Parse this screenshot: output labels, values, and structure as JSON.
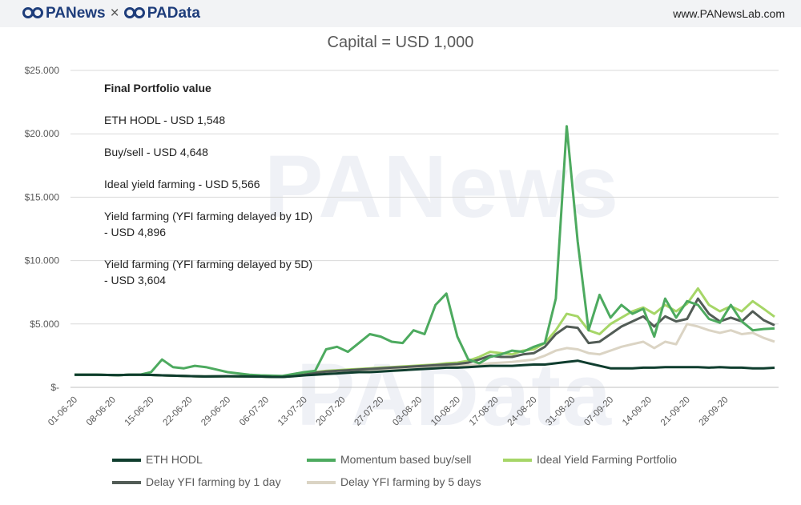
{
  "header": {
    "brand_left": "PANews",
    "brand_sep": "×",
    "brand_right": "PAData",
    "site": "www.PANewsLab.com"
  },
  "watermarks": [
    "PANews",
    "PAData"
  ],
  "annotations": {
    "heading": "Final Portfolio value",
    "lines": [
      "ETH HODL - USD 1,548",
      "Buy/sell - USD 4,648",
      "Ideal yield farming - USD 5,566",
      "Yield farming (YFI farming delayed by 1D)",
      "- USD 4,896",
      "Yield farming (YFI farming delayed by 5D)",
      "- USD 3,604"
    ]
  },
  "chart_data": {
    "type": "line",
    "title": "Capital = USD 1,000",
    "xlabel": "",
    "ylabel": "",
    "ylim": [
      0,
      25000
    ],
    "yticks": [
      0,
      5000,
      10000,
      15000,
      20000,
      25000
    ],
    "ytick_labels": [
      "$-",
      "$5.000",
      "$10.000",
      "$15.000",
      "$20.000",
      "$25.000"
    ],
    "x_start": "2020-06-01",
    "x_step_days": 2,
    "x_tick_labels": [
      "01-06-20",
      "08-06-20",
      "15-06-20",
      "22-06-20",
      "29-06-20",
      "06-07-20",
      "13-07-20",
      "20-07-20",
      "27-07-20",
      "03-08-20",
      "10-08-20",
      "17-08-20",
      "24-08-20",
      "31-08-20",
      "07-09-20",
      "14-09-20",
      "21-09-20",
      "28-09-20"
    ],
    "grid": true,
    "legend_position": "bottom",
    "series": [
      {
        "name": "ETH HODL",
        "color": "#0f3d2e",
        "values": [
          1000,
          1000,
          1000,
          980,
          960,
          990,
          1000,
          980,
          950,
          920,
          900,
          880,
          860,
          870,
          880,
          870,
          860,
          850,
          830,
          820,
          880,
          950,
          1000,
          1050,
          1100,
          1150,
          1200,
          1200,
          1250,
          1300,
          1350,
          1400,
          1450,
          1500,
          1550,
          1550,
          1600,
          1650,
          1700,
          1700,
          1700,
          1750,
          1800,
          1800,
          1900,
          2000,
          2100,
          1900,
          1700,
          1500,
          1500,
          1500,
          1550,
          1550,
          1600,
          1600,
          1600,
          1600,
          1550,
          1600,
          1550,
          1550,
          1500,
          1500,
          1548
        ]
      },
      {
        "name": "Momentum based buy/sell",
        "color": "#4daa5f",
        "values": [
          1000,
          1000,
          1000,
          980,
          960,
          990,
          1000,
          1200,
          2200,
          1600,
          1500,
          1700,
          1600,
          1400,
          1200,
          1100,
          1000,
          950,
          920,
          900,
          1050,
          1200,
          1300,
          3000,
          3200,
          2800,
          3500,
          4200,
          4000,
          3600,
          3500,
          4500,
          4200,
          6500,
          7400,
          4000,
          2200,
          1900,
          2400,
          2600,
          2900,
          2800,
          3200,
          3500,
          7000,
          20600,
          11500,
          4500,
          7300,
          5500,
          6500,
          5800,
          6200,
          4000,
          7000,
          5500,
          6800,
          6500,
          5400,
          5100,
          6500,
          5200,
          4500,
          4600,
          4648
        ]
      },
      {
        "name": "Ideal Yield Farming Portfolio",
        "color": "#a6d667",
        "values": [
          1000,
          1000,
          1000,
          980,
          960,
          990,
          1000,
          980,
          950,
          920,
          900,
          880,
          860,
          870,
          880,
          870,
          860,
          850,
          830,
          820,
          900,
          1050,
          1200,
          1300,
          1350,
          1400,
          1450,
          1500,
          1550,
          1600,
          1650,
          1700,
          1750,
          1800,
          1900,
          1950,
          2100,
          2400,
          2800,
          2700,
          2600,
          2900,
          3000,
          3500,
          4500,
          5800,
          5600,
          4500,
          4200,
          5000,
          5500,
          6000,
          6300,
          5800,
          6500,
          6000,
          6600,
          7800,
          6500,
          6000,
          6400,
          6000,
          6800,
          6200,
          5566
        ]
      },
      {
        "name": "Delay YFI farming by 1 day",
        "color": "#525c56",
        "values": [
          1000,
          1000,
          1000,
          980,
          960,
          990,
          1000,
          980,
          950,
          920,
          900,
          880,
          860,
          870,
          880,
          870,
          860,
          850,
          830,
          820,
          900,
          1000,
          1150,
          1250,
          1300,
          1350,
          1400,
          1450,
          1500,
          1550,
          1600,
          1650,
          1700,
          1750,
          1800,
          1850,
          1950,
          2200,
          2500,
          2400,
          2400,
          2600,
          2700,
          3200,
          4200,
          4800,
          4700,
          3500,
          3600,
          4200,
          4800,
          5200,
          5600,
          4800,
          5600,
          5200,
          5400,
          7000,
          5800,
          5200,
          5500,
          5200,
          6000,
          5300,
          4896
        ]
      },
      {
        "name": "Delay YFI farming by 5 days",
        "color": "#dbd4c4",
        "values": [
          1000,
          1000,
          1000,
          980,
          960,
          990,
          1000,
          980,
          950,
          920,
          900,
          880,
          860,
          870,
          880,
          870,
          860,
          850,
          830,
          820,
          880,
          950,
          1050,
          1100,
          1150,
          1200,
          1250,
          1300,
          1350,
          1400,
          1450,
          1500,
          1550,
          1600,
          1650,
          1700,
          1750,
          1800,
          1900,
          1950,
          2000,
          2100,
          2200,
          2500,
          2900,
          3100,
          3000,
          2700,
          2600,
          2900,
          3200,
          3400,
          3600,
          3100,
          3600,
          3400,
          5000,
          4800,
          4500,
          4300,
          4500,
          4200,
          4300,
          3900,
          3604
        ]
      }
    ]
  }
}
